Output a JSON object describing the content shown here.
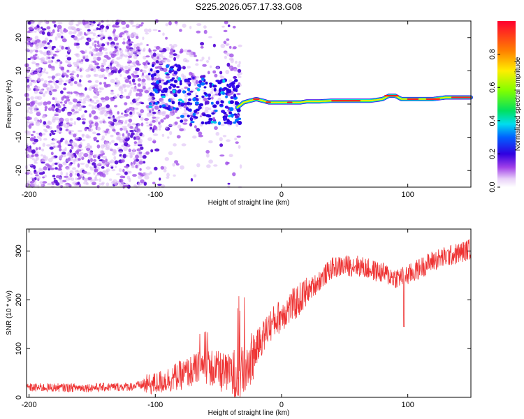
{
  "title": "S225.2026.057.17.33.G08",
  "chart_data": [
    {
      "type": "heatmap",
      "name": "spectrogram",
      "xlabel": "Height of straight line (km)",
      "ylabel": "Frequency (Hz)",
      "xlim": [
        -202,
        150
      ],
      "ylim": [
        -25,
        25
      ],
      "xticks": [
        -200,
        -100,
        0,
        100
      ],
      "yticks": [
        -20,
        -10,
        0,
        10,
        20
      ],
      "ridge": {
        "description": "dominant frequency band (km, Hz)",
        "x": [
          -35,
          -30,
          -25,
          -20,
          -15,
          -10,
          -5,
          0,
          5,
          10,
          15,
          20,
          30,
          40,
          50,
          60,
          70,
          80,
          85,
          90,
          95,
          100,
          110,
          120,
          130,
          140,
          150
        ],
        "y": [
          -1,
          0.5,
          1,
          1.5,
          1,
          0.5,
          0.5,
          0.5,
          0.5,
          0.5,
          0.5,
          0.8,
          0.8,
          1,
          1,
          1,
          1,
          1.5,
          2.5,
          2.5,
          1.5,
          1.5,
          1.5,
          1.5,
          2,
          2,
          2
        ]
      },
      "colorbar": {
        "label": "Normalized spectral amplitude",
        "range": [
          0,
          1
        ],
        "ticks": [
          "0.0",
          "0.2",
          "0.4",
          "0.6",
          "0.8"
        ]
      }
    },
    {
      "type": "line",
      "name": "snr",
      "xlabel": "Height of straight line (km)",
      "ylabel": "SNR (10 * v/v)",
      "xlim": [
        -202,
        150
      ],
      "ylim": [
        0,
        345
      ],
      "xticks": [
        -200,
        -100,
        0,
        100
      ],
      "yticks": [
        0,
        100,
        200,
        300
      ],
      "color": "#ee3333",
      "trend": {
        "x": [
          -202,
          -150,
          -120,
          -100,
          -80,
          -60,
          -45,
          -40,
          -30,
          -20,
          -10,
          0,
          10,
          20,
          30,
          40,
          50,
          60,
          70,
          80,
          90,
          100,
          110,
          120,
          130,
          140,
          150
        ],
        "y": [
          20,
          20,
          22,
          28,
          45,
          65,
          48,
          45,
          50,
          100,
          145,
          170,
          190,
          215,
          240,
          265,
          270,
          270,
          262,
          255,
          245,
          250,
          265,
          280,
          288,
          295,
          305
        ]
      }
    }
  ]
}
